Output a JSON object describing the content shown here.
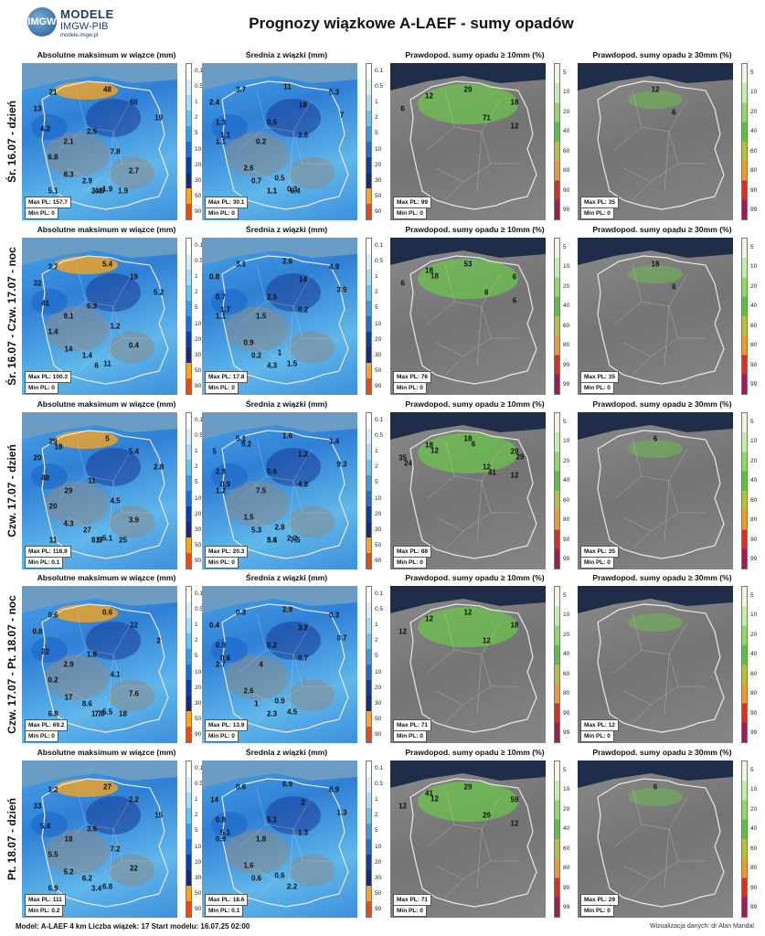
{
  "header": {
    "logo_text": "IMGW",
    "logo_line1": "MODELE",
    "logo_line2": "IMGW-PIB",
    "logo_line3": "modele.imgw.pl",
    "title": "Prognozy wiązkowe A-LAEF - sumy opadów"
  },
  "column_titles": [
    "Absolutne maksimum w wiązce (mm)",
    "Średnia z wiązki (mm)",
    "Prawdopod. sumy opadu ≥ 10mm (%)",
    "Prawdopod. sumy opadu ≥ 30mm (%)"
  ],
  "colorbar_precip": {
    "ticks": [
      "0.1",
      "0.5",
      "1",
      "2",
      "5",
      "10",
      "20",
      "30",
      "50",
      "90"
    ],
    "colors": [
      "#ffffff",
      "#d8eef8",
      "#a8dcf4",
      "#6cc1ef",
      "#3b9ee3",
      "#2170d6",
      "#0d3f9e",
      "#1a2a7a",
      "#f8a51c",
      "#e84a10"
    ]
  },
  "colorbar_prob": {
    "ticks": [
      "5",
      "10",
      "20",
      "40",
      "60",
      "80",
      "90",
      "99"
    ],
    "colors": [
      "#eef8e2",
      "#c4ecab",
      "#8ed96a",
      "#5cc23d",
      "#b9c13a",
      "#f09a2a",
      "#d8301f",
      "#a31a55"
    ]
  },
  "rows": [
    {
      "label": "Śr. 16.07 - dzień",
      "panels": [
        {
          "values": [
            "21",
            "48",
            "68",
            "13",
            "19",
            "4.2",
            "2.5",
            "2.1",
            "7.8",
            "6.8",
            "8.3",
            "2.7",
            "2.9",
            "1.9",
            "2.4",
            "5.1",
            "1.9",
            "4.9"
          ],
          "max": "Max PL: 157.7",
          "min": "Min PL: 0"
        },
        {
          "values": [
            "3.7",
            "11",
            "5.3",
            "2.4",
            "18",
            "7",
            "1.3",
            "0.5",
            "0.2",
            "3.8",
            "1.1",
            "2.6",
            "1.1",
            "0.7",
            "0.5",
            "0.3",
            "1.1",
            "0.4",
            "1.1"
          ],
          "max": "Max PL: 30.1",
          "min": "Min PL: 0"
        },
        {
          "values": [
            "12",
            "29",
            "18",
            "6",
            "71",
            "12"
          ],
          "max": "Max PL: 99",
          "min": "Min PL: 0"
        },
        {
          "values": [
            "12",
            "6"
          ],
          "max": "Max PL: 35",
          "min": "Min PL: 0"
        }
      ]
    },
    {
      "label": "Śr. 16.07 - Czw. 17.07 - noc",
      "panels": [
        {
          "values": [
            "3.7",
            "5.4",
            "19",
            "32",
            "5.2",
            "41",
            "6.3",
            "9.1",
            "1.2",
            "1.4",
            "14",
            "0.4",
            "1.4",
            "11",
            "6"
          ],
          "max": "Max PL: 100.3",
          "min": "Min PL: 0"
        },
        {
          "values": [
            "3.1",
            "2.6",
            "4.9",
            "0.8",
            "14",
            "3.9",
            "0.7",
            "2.5",
            "1.5",
            "0.2",
            "1.1",
            "0.9",
            "1.7",
            "0.2",
            "1",
            "1.5",
            "4.3"
          ],
          "max": "Max PL: 17.8",
          "min": "Min PL: 0"
        },
        {
          "values": [
            "18",
            "53",
            "6",
            "6",
            "6",
            "6",
            "18"
          ],
          "max": "Max PL: 76",
          "min": "Min PL: 0"
        },
        {
          "values": [
            "18",
            "6"
          ],
          "max": "Max PL: 35",
          "min": "Min PL: 0"
        }
      ]
    },
    {
      "label": "Czw. 17.07 - dzień",
      "panels": [
        {
          "values": [
            "29",
            "5",
            "5.4",
            "20",
            "2.8",
            "48",
            "11",
            "29",
            "4.5",
            "20",
            "4.3",
            "3.9",
            "27",
            "5.1",
            "8.9",
            "11",
            "25",
            "17",
            "18"
          ],
          "max": "Max PL: 118.9",
          "min": "Min PL: 0.1"
        },
        {
          "values": [
            "5.1",
            "1.6",
            "1.4",
            "5",
            "1.2",
            "9.3",
            "2.8",
            "0.6",
            "7.5",
            "4.8",
            "1.2",
            "1.5",
            "0.9",
            "5.3",
            "2.8",
            "2.2",
            "3.4",
            "7.5",
            "5.6",
            "9.2"
          ],
          "max": "Max PL: 20.3",
          "min": "Min PL: 0"
        },
        {
          "values": [
            "18",
            "18",
            "29",
            "35",
            "12",
            "12",
            "12",
            "6",
            "29",
            "24",
            "41"
          ],
          "max": "Max PL: 88",
          "min": "Min PL: 0"
        },
        {
          "values": [
            "6"
          ],
          "max": "Max PL: 35",
          "min": "Min PL: 0"
        }
      ]
    },
    {
      "label": "Czw. 17.07 - Pt. 18.07 - noc",
      "panels": [
        {
          "values": [
            "0.6",
            "0.6",
            "22",
            "0.8",
            "2",
            "22",
            "1.8",
            "2.9",
            "4.1",
            "0.2",
            "17",
            "7.6",
            "8.6",
            "5.5",
            "1.7",
            "6.8",
            "18",
            "7.8"
          ],
          "max": "Max PL: 69.2",
          "min": "Min PL: 0"
        },
        {
          "values": [
            "0.3",
            "2.9",
            "0.3",
            "0.4",
            "3.2",
            "0.7",
            "0.9",
            "0.2",
            "4",
            "0.7",
            "2.7",
            "2.6",
            "0.6",
            "1",
            "0.9",
            "4.5",
            "2.3"
          ],
          "max": "Max PL: 13.9",
          "min": "Min PL: 0"
        },
        {
          "values": [
            "12",
            "12",
            "18",
            "12",
            "12"
          ],
          "max": "Max PL: 71",
          "min": "Min PL: 0"
        },
        {
          "values": [],
          "max": "Max PL: 12",
          "min": "Min PL: 0"
        }
      ]
    },
    {
      "label": "Pt. 18.07 - dzień",
      "panels": [
        {
          "values": [
            "1.2",
            "27",
            "2.2",
            "33",
            "15",
            "5.4",
            "3.6",
            "18",
            "7.2",
            "5.5",
            "5.2",
            "22",
            "6.2",
            "6.8",
            "3.4",
            "6.9"
          ],
          "max": "Max PL: 111",
          "min": "Min PL: 0.2"
        },
        {
          "values": [
            "0.6",
            "6.9",
            "8.9",
            "14",
            "2",
            "1.3",
            "0.8",
            "5.1",
            "1.8",
            "1.3",
            "0.9",
            "1.6",
            "5.1",
            "0.6",
            "0.6",
            "2.2"
          ],
          "max": "Max PL: 18.6",
          "min": "Min PL: 0.1"
        },
        {
          "values": [
            "41",
            "29",
            "59",
            "12",
            "29",
            "12",
            "12"
          ],
          "max": "Max PL: 71",
          "min": "Min PL: 0"
        },
        {
          "values": [
            "6"
          ],
          "max": "Max PL: 29",
          "min": "Min PL: 0"
        }
      ]
    }
  ],
  "footer": {
    "left": "Model: A-LAEF 4 km Liczba wiązek: 17     Start modelu: 16.07.25 02:00",
    "right": "Wizualizacja danych: dr Alan Mandal"
  },
  "chart_data": {
    "type": "heatmap",
    "title": "Prognozy wiązkowe A-LAEF - sumy opadów",
    "panel_types": [
      "Absolutne maksimum w wiązce (mm)",
      "Średnia z wiązki (mm)",
      "Prawdopod. sumy opadu ≥ 10mm (%)",
      "Prawdopod. sumy opadu ≥ 30mm (%)"
    ],
    "periods": [
      "Śr. 16.07 - dzień",
      "Śr. 16.07 - Czw. 17.07 - noc",
      "Czw. 17.07 - dzień",
      "Czw. 17.07 - Pt. 18.07 - noc",
      "Pt. 18.07 - dzień"
    ],
    "max_pl": [
      [
        157.7,
        30.1,
        99,
        35
      ],
      [
        100.3,
        17.8,
        76,
        35
      ],
      [
        118.9,
        20.3,
        88,
        35
      ],
      [
        69.2,
        13.9,
        71,
        12
      ],
      [
        111,
        18.6,
        71,
        29
      ]
    ],
    "min_pl": [
      [
        0,
        0,
        0,
        0
      ],
      [
        0,
        0,
        0,
        0
      ],
      [
        0.1,
        0,
        0,
        0
      ],
      [
        0,
        0,
        0,
        0
      ],
      [
        0.2,
        0.1,
        0,
        0
      ]
    ],
    "precip_levels_mm": [
      0.1,
      0.5,
      1,
      2,
      5,
      10,
      20,
      30,
      50,
      90
    ],
    "prob_levels_pct": [
      5,
      10,
      20,
      40,
      60,
      80,
      90,
      99
    ]
  }
}
